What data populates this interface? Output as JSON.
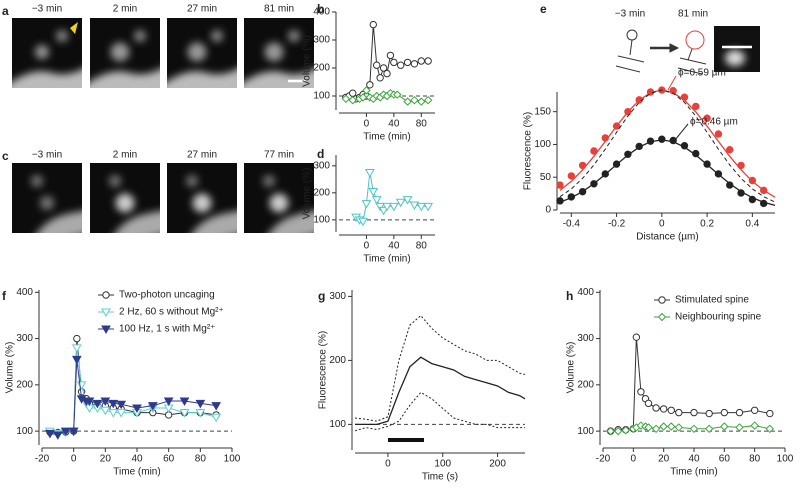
{
  "images": [
    {
      "panel": "a",
      "frames": [
        "−3 min",
        "2 min",
        "27 min",
        "81 min"
      ]
    },
    {
      "panel": "c",
      "frames": [
        "−3 min",
        "2 min",
        "27 min",
        "77 min"
      ]
    }
  ],
  "schematic": {
    "before": "−3 min",
    "after": "81 min"
  },
  "chart_data": [
    {
      "panel": "b",
      "type": "line",
      "ylabel": "Volume (%)",
      "xlabel": "Time (min)",
      "xlim": [
        -40,
        100
      ],
      "xticks": [
        0,
        40,
        80
      ],
      "ylim": [
        50,
        400
      ],
      "yticks": [
        100,
        200,
        300,
        400
      ],
      "reference_line": 100,
      "series": [
        {
          "color": "#333333",
          "marker": "circle",
          "filled": false,
          "line": "solid",
          "x": [
            -30,
            -25,
            -20,
            -15,
            -10,
            -5,
            0,
            5,
            10,
            15,
            20,
            25,
            30,
            35,
            40,
            50,
            60,
            70,
            80,
            90
          ],
          "values": [
            95,
            100,
            110,
            90,
            95,
            105,
            100,
            140,
            355,
            210,
            165,
            200,
            180,
            245,
            220,
            210,
            220,
            215,
            225,
            225
          ]
        },
        {
          "color": "#3aa53a",
          "marker": "diamond",
          "filled": false,
          "line": "solid",
          "x": [
            -30,
            -20,
            -10,
            -5,
            0,
            5,
            10,
            15,
            20,
            25,
            30,
            35,
            40,
            45,
            60,
            70,
            80,
            90
          ],
          "values": [
            90,
            85,
            90,
            95,
            120,
            95,
            90,
            100,
            95,
            105,
            100,
            110,
            105,
            105,
            80,
            85,
            80,
            85
          ]
        }
      ]
    },
    {
      "panel": "d",
      "type": "line",
      "ylabel": "Volume (%)",
      "xlabel": "Time (min)",
      "xlim": [
        -40,
        100
      ],
      "xticks": [
        0,
        40,
        80
      ],
      "ylim": [
        55,
        340
      ],
      "yticks": [
        100,
        200,
        300
      ],
      "reference_line": 100,
      "series": [
        {
          "color": "#4fc3c8",
          "marker": "triangle-down",
          "filled": false,
          "line": "solid",
          "x": [
            -15,
            -10,
            -5,
            0,
            5,
            10,
            15,
            20,
            25,
            30,
            40,
            50,
            60,
            70,
            80,
            90
          ],
          "values": [
            110,
            100,
            95,
            160,
            275,
            205,
            175,
            150,
            135,
            150,
            150,
            165,
            175,
            155,
            150,
            150
          ]
        }
      ]
    },
    {
      "panel": "e",
      "type": "line",
      "ylabel": "Fluorescence (%)",
      "xlabel": "Distance (µm)",
      "xlim": [
        -0.45,
        0.5
      ],
      "xticks": [
        -0.4,
        -0.2,
        0,
        0.2,
        0.4
      ],
      "ylim": [
        0,
        180
      ],
      "yticks": [
        0,
        50,
        100,
        150
      ],
      "annotations": [
        {
          "text": "ϕ=0.59 µm",
          "color": "#e8403a"
        },
        {
          "text": "ϕ=0.46 µm",
          "color": "#222222"
        }
      ],
      "series": [
        {
          "color": "#e8403a",
          "marker": "circle",
          "filled": true,
          "line": "none",
          "x": [
            -0.45,
            -0.4,
            -0.35,
            -0.3,
            -0.25,
            -0.2,
            -0.15,
            -0.1,
            -0.05,
            0,
            0.05,
            0.1,
            0.15,
            0.2,
            0.25,
            0.3,
            0.35,
            0.4,
            0.45
          ],
          "values": [
            38,
            52,
            68,
            90,
            110,
            128,
            150,
            168,
            180,
            183,
            182,
            172,
            158,
            140,
            116,
            92,
            68,
            45,
            30
          ]
        },
        {
          "color": "#222222",
          "marker": "circle",
          "filled": true,
          "line": "none",
          "x": [
            -0.45,
            -0.4,
            -0.35,
            -0.3,
            -0.25,
            -0.2,
            -0.15,
            -0.1,
            -0.05,
            0,
            0.05,
            0.1,
            0.15,
            0.2,
            0.25,
            0.3,
            0.35,
            0.4,
            0.45
          ],
          "values": [
            14,
            20,
            28,
            40,
            55,
            70,
            85,
            97,
            105,
            108,
            106,
            98,
            86,
            70,
            55,
            38,
            26,
            16,
            10
          ]
        },
        {
          "color": "#e8403a",
          "marker": "none",
          "line": "solid",
          "x": [
            -0.45,
            -0.4,
            -0.35,
            -0.3,
            -0.25,
            -0.2,
            -0.15,
            -0.1,
            -0.05,
            0,
            0.05,
            0.1,
            0.15,
            0.2,
            0.25,
            0.3,
            0.35,
            0.4,
            0.45,
            0.5
          ],
          "values": [
            30,
            43.8,
            61.3,
            81.9,
            104.7,
            128,
            149.7,
            167.4,
            179,
            183,
            179,
            167.4,
            149.7,
            128,
            104.7,
            81.9,
            61.3,
            43.8,
            30,
            19.6
          ]
        },
        {
          "color": "#222222",
          "marker": "none",
          "line": "solid",
          "x": [
            -0.45,
            -0.4,
            -0.35,
            -0.3,
            -0.25,
            -0.2,
            -0.15,
            -0.1,
            -0.05,
            0,
            0.05,
            0.1,
            0.15,
            0.2,
            0.25,
            0.3,
            0.35,
            0.4,
            0.45,
            0.5
          ],
          "values": [
            11.8,
            18.8,
            28.2,
            40.2,
            54.3,
            69.3,
            83.8,
            96,
            104.1,
            107,
            104.1,
            96,
            83.8,
            69.3,
            54.3,
            40.2,
            28.2,
            18.8,
            11.8,
            7.1
          ]
        },
        {
          "color": "#222222",
          "marker": "none",
          "line": "dashed",
          "x": [
            -0.45,
            -0.4,
            -0.35,
            -0.3,
            -0.25,
            -0.2,
            -0.15,
            -0.1,
            -0.05,
            0,
            0.05,
            0.1,
            0.15,
            0.2,
            0.25,
            0.3,
            0.35,
            0.4,
            0.45,
            0.5
          ],
          "values": [
            20.3,
            32.2,
            48.3,
            68.8,
            92.8,
            118.5,
            143.3,
            164.2,
            178.1,
            183,
            178.1,
            164.2,
            143.3,
            118.5,
            92.8,
            68.8,
            48.3,
            32.2,
            20.3,
            12.1
          ]
        }
      ]
    },
    {
      "panel": "f",
      "type": "line",
      "ylabel": "Volume (%)",
      "xlabel": "Time (min)",
      "xlim": [
        -20,
        100
      ],
      "xticks": [
        -20,
        0,
        20,
        40,
        60,
        80,
        100
      ],
      "ylim": [
        70,
        405
      ],
      "yticks": [
        100,
        200,
        300,
        400
      ],
      "reference_line": 100,
      "series": [
        {
          "name": "Two-photon uncaging",
          "color": "#333333",
          "marker": "circle",
          "filled": false,
          "line": "solid",
          "x": [
            -15,
            -10,
            -5,
            0,
            2,
            5,
            8,
            10,
            15,
            20,
            25,
            30,
            40,
            50,
            60,
            70,
            80,
            90
          ],
          "values": [
            98,
            97,
            98,
            100,
            300,
            185,
            170,
            160,
            155,
            155,
            150,
            148,
            140,
            140,
            135,
            140,
            140,
            135
          ]
        },
        {
          "name": "2 Hz, 60 s without Mg²⁺",
          "color": "#5ccfd0",
          "marker": "triangle-down",
          "filled": false,
          "line": "solid",
          "x": [
            -15,
            -10,
            -5,
            0,
            2,
            5,
            8,
            10,
            15,
            20,
            25,
            30,
            40,
            50,
            60,
            70,
            80,
            90
          ],
          "values": [
            100,
            95,
            98,
            100,
            280,
            200,
            160,
            150,
            150,
            145,
            140,
            140,
            140,
            150,
            150,
            140,
            140,
            130
          ]
        },
        {
          "name": "100 Hz, 1 s with Mg²⁺",
          "color": "#2e3a8c",
          "marker": "triangle-down",
          "filled": true,
          "line": "solid",
          "x": [
            -15,
            -10,
            -5,
            0,
            2,
            5,
            8,
            10,
            15,
            20,
            25,
            30,
            40,
            50,
            60,
            70,
            80,
            90
          ],
          "values": [
            95,
            92,
            100,
            100,
            255,
            170,
            165,
            165,
            160,
            165,
            160,
            158,
            150,
            155,
            165,
            165,
            160,
            155
          ]
        }
      ]
    },
    {
      "panel": "g",
      "type": "line",
      "ylabel": "Fluorescence (%)",
      "xlabel": "Time (s)",
      "xlim": [
        -60,
        250
      ],
      "xticks": [
        0,
        100,
        200
      ],
      "ylim": [
        60,
        310
      ],
      "yticks": [
        100,
        200,
        300
      ],
      "reference_line": 100,
      "series": [
        {
          "color": "#222222",
          "marker": "none",
          "line": "solid",
          "x": [
            -60,
            -40,
            -20,
            0,
            20,
            40,
            60,
            80,
            100,
            120,
            140,
            160,
            180,
            200,
            220,
            240,
            250
          ],
          "values": [
            100,
            100,
            100,
            105,
            150,
            190,
            205,
            195,
            190,
            185,
            175,
            170,
            165,
            160,
            150,
            145,
            140
          ]
        },
        {
          "color": "#222222",
          "marker": "none",
          "line": "dotted",
          "x": [
            -60,
            -40,
            -20,
            0,
            20,
            40,
            60,
            80,
            100,
            120,
            140,
            160,
            180,
            200,
            220,
            240,
            250
          ],
          "values": [
            110,
            108,
            105,
            112,
            200,
            255,
            270,
            250,
            235,
            225,
            215,
            210,
            200,
            200,
            190,
            180,
            178
          ]
        },
        {
          "color": "#222222",
          "marker": "none",
          "line": "dotted",
          "x": [
            -60,
            -40,
            -20,
            0,
            20,
            40,
            60,
            80,
            100,
            120,
            140,
            160,
            180,
            200,
            220,
            240,
            250
          ],
          "values": [
            90,
            95,
            92,
            97,
            105,
            130,
            150,
            140,
            125,
            110,
            105,
            100,
            100,
            95,
            95,
            95,
            95
          ]
        }
      ]
    },
    {
      "panel": "h",
      "type": "line",
      "ylabel": "Volume (%)",
      "xlabel": "Time (min)",
      "xlim": [
        -20,
        100
      ],
      "xticks": [
        -20,
        0,
        20,
        40,
        60,
        80,
        100
      ],
      "ylim": [
        70,
        405
      ],
      "yticks": [
        100,
        200,
        300,
        400
      ],
      "reference_line": 100,
      "series": [
        {
          "name": "Stimulated spine",
          "color": "#333333",
          "marker": "circle",
          "filled": false,
          "line": "solid",
          "x": [
            -15,
            -10,
            -5,
            0,
            2,
            5,
            8,
            10,
            15,
            20,
            25,
            30,
            40,
            50,
            60,
            70,
            80,
            90
          ],
          "values": [
            100,
            103,
            103,
            105,
            303,
            185,
            170,
            160,
            150,
            148,
            145,
            140,
            140,
            138,
            140,
            140,
            145,
            138
          ]
        },
        {
          "name": "Neighbouring spine",
          "color": "#3aa53a",
          "marker": "diamond",
          "filled": false,
          "line": "solid",
          "x": [
            -15,
            -10,
            -5,
            0,
            2,
            5,
            8,
            10,
            15,
            20,
            25,
            30,
            40,
            50,
            60,
            70,
            80,
            90
          ],
          "values": [
            100,
            100,
            102,
            105,
            108,
            112,
            110,
            108,
            105,
            110,
            110,
            108,
            105,
            105,
            110,
            108,
            112,
            105
          ]
        }
      ]
    }
  ]
}
